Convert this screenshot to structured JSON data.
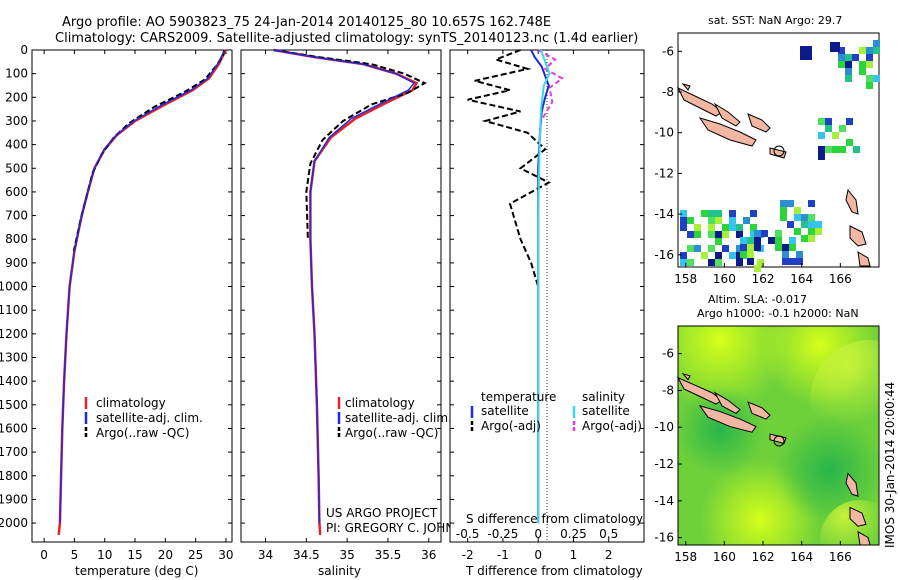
{
  "title_line1": "Argo profile: AO 5903823_75 24-Jan-2014 20140125_80 10.657S 162.748E",
  "title_line2": "Climatology: CARS2009. Satellite-adjusted climatology: synTS_20140123.nc (1.4d earlier)",
  "project_text": "US ARGO PROJECT",
  "pi_text": "PI: GREGORY C. JOHNSON",
  "timestamp_text": "IMOS 30-Jan-2014 20:00:44",
  "sst_title": "sat. SST: NaN Argo: 29.7",
  "sla_title1": "Altim. SLA: -0.017",
  "sla_title2": "Argo h1000: -0.1 h2000: NaN",
  "colors": {
    "climatology": "#e8202a",
    "satellite": "#1e2bd8",
    "argo": "#000000",
    "sat_s": "#3fd5e8",
    "argo_s": "#e23ce0"
  },
  "chart_data": [
    {
      "type": "line",
      "name": "temperature",
      "xlabel": "temperature (deg C)",
      "ylabel": "",
      "xlim": [
        -2,
        31
      ],
      "ylim": [
        2080,
        0
      ],
      "x_ticks": [
        "0",
        "5",
        "10",
        "15",
        "20",
        "25",
        "30"
      ],
      "y_ticks": [
        "0",
        "100",
        "200",
        "300",
        "400",
        "500",
        "600",
        "700",
        "800",
        "900",
        "1000",
        "1100",
        "1200",
        "1300",
        "1400",
        "1500",
        "1600",
        "1700",
        "1800",
        "1900",
        "2000"
      ],
      "legend": [
        "climatology",
        "satellite-adj. clim.",
        "Argo(..raw -QC)"
      ],
      "series": [
        {
          "name": "climatology",
          "x": [
            30.0,
            29.6,
            28.8,
            27.2,
            24.5,
            20.0,
            15.0,
            12.0,
            10.0,
            8.3,
            7.2,
            6.2,
            5.0,
            4.2,
            3.7,
            3.3,
            3.0,
            2.8,
            2.6,
            2.4
          ],
          "depth": [
            0,
            20,
            60,
            120,
            170,
            230,
            300,
            360,
            420,
            500,
            600,
            700,
            850,
            1000,
            1200,
            1400,
            1600,
            1800,
            2000,
            2050
          ]
        },
        {
          "name": "satellite",
          "x": [
            29.8,
            29.4,
            28.6,
            27.0,
            24.2,
            19.6,
            14.8,
            11.9,
            9.9,
            8.3,
            7.2,
            6.2,
            5.0,
            4.2,
            3.7,
            3.3,
            3.0,
            2.8,
            2.6
          ],
          "depth": [
            0,
            20,
            60,
            120,
            170,
            230,
            300,
            360,
            420,
            500,
            600,
            700,
            850,
            1000,
            1200,
            1400,
            1600,
            1800,
            2000
          ]
        },
        {
          "name": "Argo",
          "x": [
            29.7,
            29.5,
            28.3,
            26.5,
            23.0,
            18.2,
            14.0,
            11.5,
            9.5,
            8.0,
            7.0,
            6.0,
            4.9
          ],
          "depth": [
            0,
            25,
            70,
            125,
            180,
            240,
            310,
            370,
            440,
            520,
            620,
            720,
            850
          ]
        }
      ]
    },
    {
      "type": "line",
      "name": "salinity",
      "xlabel": "salinity",
      "xlim": [
        33.7,
        36.15
      ],
      "ylim": [
        2080,
        0
      ],
      "x_ticks": [
        "34",
        "34.5",
        "35",
        "35.5",
        "36"
      ],
      "legend": [
        "climatology",
        "satellite-adj. clim.",
        "Argo(..raw -QC)"
      ],
      "series": [
        {
          "name": "climatology",
          "x": [
            34.1,
            34.6,
            35.2,
            35.6,
            35.85,
            35.8,
            35.5,
            35.1,
            34.8,
            34.6,
            34.55,
            34.55,
            34.57,
            34.6,
            34.63,
            34.65,
            34.66,
            34.67
          ],
          "depth": [
            0,
            30,
            60,
            100,
            140,
            170,
            220,
            290,
            370,
            470,
            600,
            800,
            1000,
            1200,
            1500,
            1800,
            2000,
            2050
          ]
        },
        {
          "name": "satellite",
          "x": [
            34.1,
            34.6,
            35.2,
            35.6,
            35.82,
            35.75,
            35.45,
            35.05,
            34.78,
            34.6,
            34.55,
            34.55,
            34.57,
            34.6,
            34.63,
            34.65,
            34.66
          ],
          "depth": [
            0,
            30,
            60,
            100,
            140,
            170,
            220,
            290,
            370,
            470,
            600,
            800,
            1000,
            1200,
            1500,
            1800,
            2000
          ]
        },
        {
          "name": "Argo",
          "x": [
            34.1,
            34.65,
            35.3,
            35.7,
            35.95,
            35.75,
            35.3,
            34.95,
            34.7,
            34.55,
            34.5,
            34.52
          ],
          "depth": [
            0,
            30,
            60,
            100,
            140,
            180,
            230,
            300,
            380,
            480,
            600,
            800
          ]
        }
      ]
    },
    {
      "type": "line",
      "name": "difference",
      "xlabel_top": "S difference from climatology",
      "xlabel": "T difference from climatology",
      "xlim": [
        -2.5,
        3.0
      ],
      "ylim": [
        2080,
        0
      ],
      "s_ticks": [
        "-0.5",
        "-0.25",
        "0",
        "0.25",
        "0.5"
      ],
      "t_ticks": [
        "-2",
        "-1",
        "0",
        "1",
        "2"
      ],
      "legend_t_title": "temperature",
      "legend_s_title": "salinity",
      "legend_t": [
        "satellite",
        "Argo(-adj)"
      ],
      "legend_s": [
        "satellite",
        "Argo(-adj)"
      ],
      "series": [
        {
          "name": "T satellite",
          "x": [
            -0.2,
            -0.1,
            0.1,
            0.2,
            0.3,
            0.2,
            0.1,
            0.05,
            0.0,
            0.0,
            0.0,
            0.0
          ],
          "depth": [
            0,
            30,
            70,
            110,
            150,
            200,
            260,
            350,
            500,
            800,
            1200,
            2000
          ]
        },
        {
          "name": "T Argo",
          "x": [
            -0.5,
            -1.2,
            -0.3,
            -1.8,
            -0.8,
            -2.0,
            -0.5,
            -1.5,
            -0.3,
            0.2,
            -0.5,
            0.3,
            -0.8,
            -0.5,
            -0.2,
            0.0
          ],
          "depth": [
            0,
            40,
            80,
            130,
            170,
            210,
            260,
            300,
            350,
            420,
            500,
            560,
            650,
            800,
            900,
            1000
          ]
        },
        {
          "name": "S satellite",
          "x": [
            0.02,
            0.05,
            0.08,
            0.04,
            0.02,
            0.01,
            0.0,
            0.0
          ],
          "depth": [
            0,
            50,
            100,
            150,
            250,
            400,
            700,
            2000
          ]
        },
        {
          "name": "S Argo",
          "x": [
            0.0,
            0.12,
            0.05,
            0.17,
            0.08,
            0.1,
            0.02,
            0.0
          ],
          "depth": [
            0,
            40,
            80,
            120,
            160,
            220,
            300,
            500
          ]
        }
      ]
    }
  ],
  "maps": {
    "lon_ticks": [
      "158",
      "160",
      "162",
      "164",
      "166"
    ],
    "lat_ticks": [
      "-6",
      "-8",
      "-10",
      "-12",
      "-14",
      "-16"
    ]
  }
}
